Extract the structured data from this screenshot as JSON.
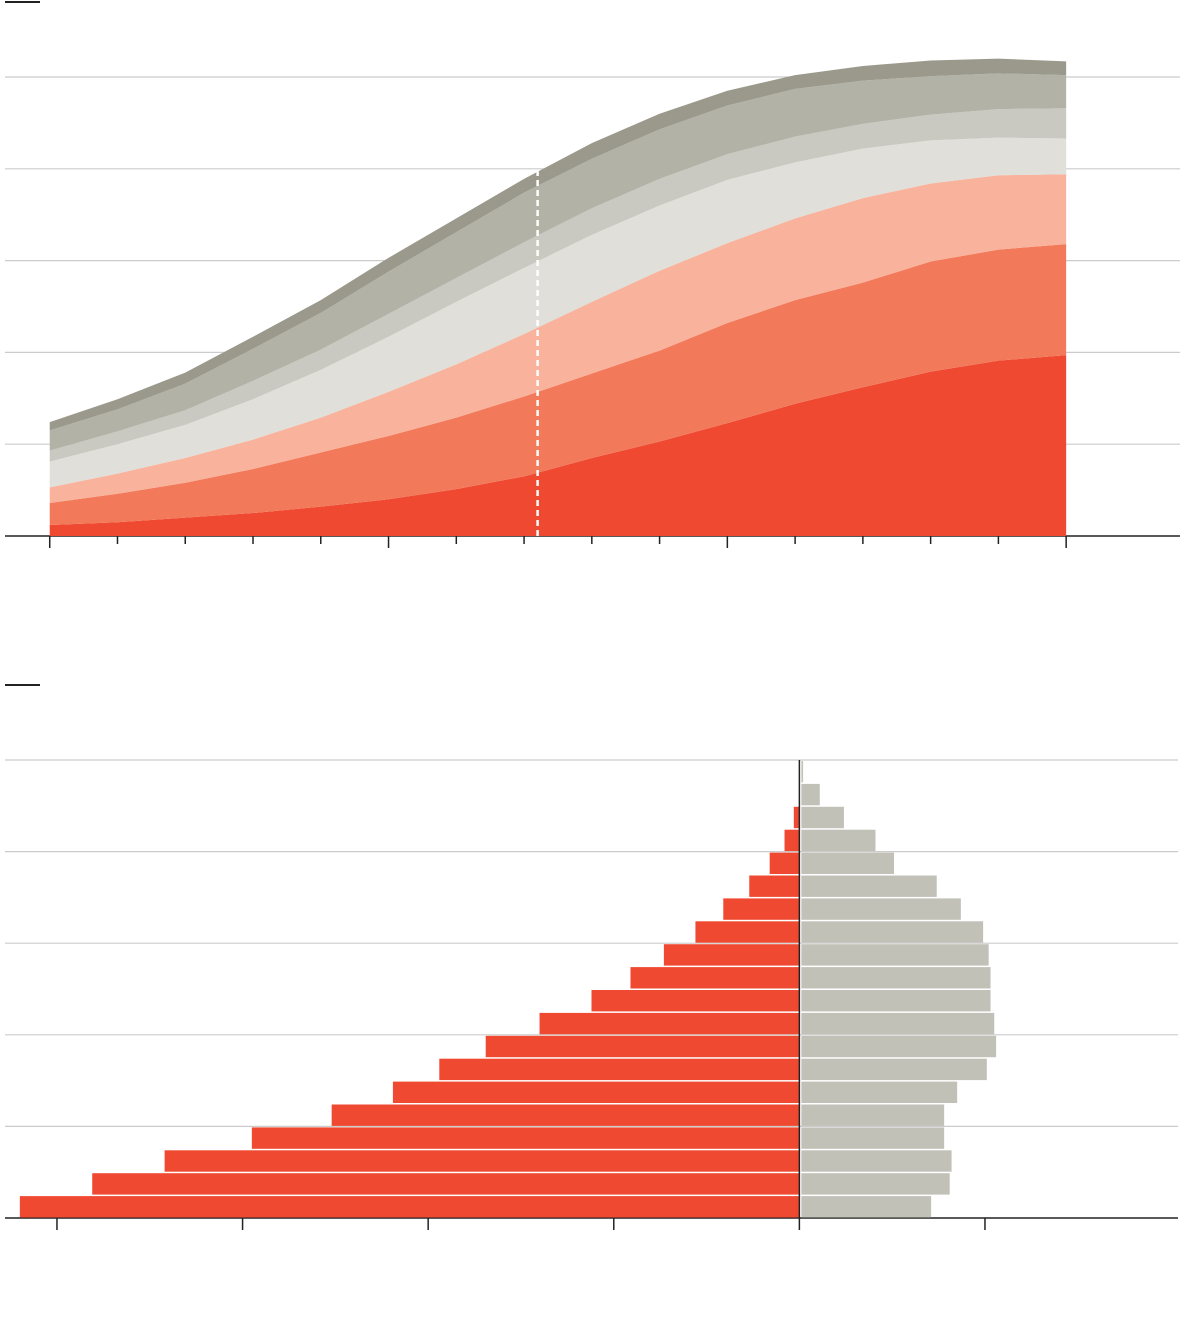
{
  "chart_data": [
    {
      "type": "stacked-area",
      "x": [
        0,
        1,
        2,
        3,
        4,
        5,
        6,
        7,
        8,
        9,
        10,
        11,
        12,
        13,
        14,
        15
      ],
      "xlim": [
        -0.66,
        16.68
      ],
      "xticks": [
        0,
        1,
        2,
        3,
        4,
        5,
        6,
        7,
        8,
        9,
        10,
        11,
        12,
        13,
        14,
        15
      ],
      "major_xticks": [
        0,
        5,
        10,
        15
      ],
      "ylim": [
        0,
        5
      ],
      "yticks": [
        0,
        1,
        2,
        3,
        4,
        5
      ],
      "grid": true,
      "vline": 7.2,
      "series": [
        {
          "color": "#ef4a31",
          "values": [
            0.12,
            0.15,
            0.2,
            0.25,
            0.32,
            0.4,
            0.51,
            0.65,
            0.85,
            1.03,
            1.23,
            1.44,
            1.62,
            1.79,
            1.91,
            1.97
          ]
        },
        {
          "color": "#f27a5b",
          "values": [
            0.24,
            0.31,
            0.38,
            0.48,
            0.59,
            0.69,
            0.78,
            0.87,
            0.92,
            0.99,
            1.09,
            1.13,
            1.14,
            1.2,
            1.21,
            1.21
          ]
        },
        {
          "color": "#f9b29b",
          "values": [
            0.17,
            0.22,
            0.27,
            0.32,
            0.38,
            0.48,
            0.58,
            0.68,
            0.78,
            0.87,
            0.87,
            0.89,
            0.92,
            0.85,
            0.81,
            0.76
          ]
        },
        {
          "color": "#e0dfda",
          "values": [
            0.28,
            0.32,
            0.36,
            0.44,
            0.52,
            0.6,
            0.68,
            0.72,
            0.73,
            0.71,
            0.69,
            0.61,
            0.54,
            0.47,
            0.41,
            0.39
          ]
        },
        {
          "color": "#cac9c1",
          "values": [
            0.12,
            0.14,
            0.16,
            0.2,
            0.22,
            0.25,
            0.26,
            0.28,
            0.29,
            0.29,
            0.28,
            0.28,
            0.27,
            0.28,
            0.31,
            0.33
          ]
        },
        {
          "color": "#b3b2a6",
          "values": [
            0.22,
            0.24,
            0.29,
            0.35,
            0.4,
            0.46,
            0.5,
            0.54,
            0.54,
            0.54,
            0.53,
            0.52,
            0.47,
            0.42,
            0.39,
            0.36
          ]
        },
        {
          "color": "#9a998b",
          "values": [
            0.09,
            0.11,
            0.12,
            0.13,
            0.14,
            0.15,
            0.15,
            0.15,
            0.17,
            0.17,
            0.16,
            0.15,
            0.16,
            0.17,
            0.16,
            0.15
          ]
        }
      ]
    },
    {
      "type": "diverging-bar",
      "categories": [
        null,
        null,
        null,
        null,
        null,
        null,
        null,
        null,
        null,
        null,
        null,
        null,
        null,
        null,
        null,
        null,
        null,
        null,
        null,
        null
      ],
      "xlim": [
        -4.28,
        2.04
      ],
      "xticks": [
        -4,
        -3,
        -2,
        -1,
        0,
        1
      ],
      "grid": true,
      "series": [
        {
          "color": "#ef4a31",
          "values": [
            0,
            0,
            -0.03,
            -0.08,
            -0.16,
            -0.27,
            -0.41,
            -0.56,
            -0.73,
            -0.91,
            -1.12,
            -1.4,
            -1.69,
            -1.94,
            -2.19,
            -2.52,
            -2.95,
            -3.42,
            -3.81,
            -4.2
          ]
        },
        {
          "color": "#c2c1b8",
          "values": [
            0.02,
            0.11,
            0.24,
            0.41,
            0.51,
            0.74,
            0.87,
            0.99,
            1.02,
            1.03,
            1.03,
            1.05,
            1.06,
            1.01,
            0.85,
            0.78,
            0.78,
            0.82,
            0.81,
            0.71
          ]
        }
      ]
    }
  ]
}
